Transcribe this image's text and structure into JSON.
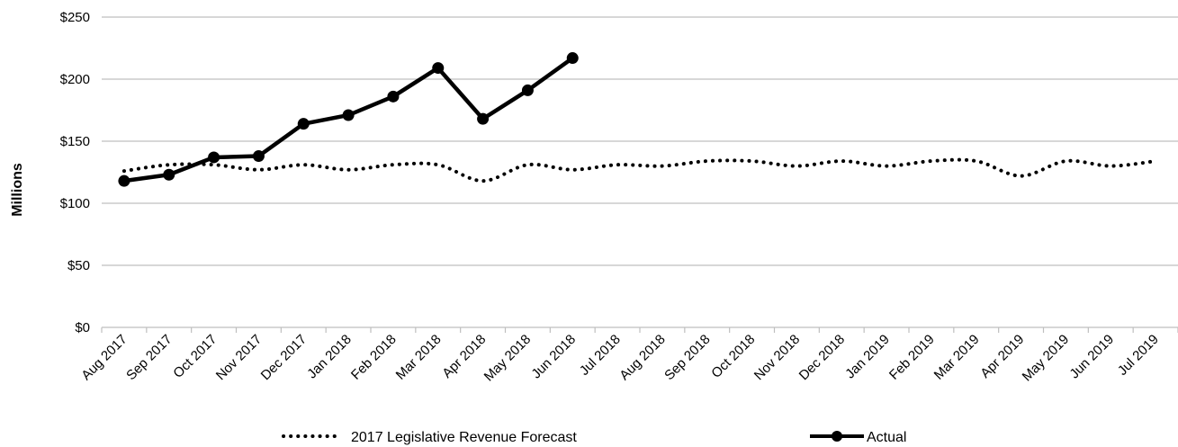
{
  "chart_data": {
    "type": "line",
    "title": "",
    "xlabel": "",
    "ylabel": "Millions",
    "ylim": [
      0,
      250
    ],
    "yticks": [
      0,
      50,
      100,
      150,
      200,
      250
    ],
    "ytick_labels": [
      "$0",
      "$50",
      "$100",
      "$150",
      "$200",
      "$250"
    ],
    "grid": "horizontal",
    "legend_position": "bottom",
    "categories": [
      "Aug 2017",
      "Sep 2017",
      "Oct 2017",
      "Nov 2017",
      "Dec 2017",
      "Jan 2018",
      "Feb 2018",
      "Mar 2018",
      "Apr 2018",
      "May 2018",
      "Jun 2018",
      "Jul 2018",
      "Aug 2018",
      "Sep 2018",
      "Oct 2018",
      "Nov 2018",
      "Dec 2018",
      "Jan 2019",
      "Feb 2019",
      "Mar 2019",
      "Apr 2019",
      "May 2019",
      "Jun 2019",
      "Jul 2019"
    ],
    "series": [
      {
        "name": "2017 Legislative Revenue Forecast",
        "style": "dotted",
        "color": "#000000",
        "values": [
          126,
          131,
          131,
          127,
          131,
          127,
          131,
          131,
          118,
          131,
          127,
          131,
          130,
          134,
          134,
          130,
          134,
          130,
          134,
          134,
          122,
          134,
          130,
          134
        ]
      },
      {
        "name": "Actual",
        "style": "solid-marker",
        "color": "#000000",
        "values": [
          118,
          123,
          137,
          138,
          164,
          171,
          186,
          209,
          168,
          191,
          217,
          null,
          null,
          null,
          null,
          null,
          null,
          null,
          null,
          null,
          null,
          null,
          null,
          null
        ]
      }
    ]
  }
}
